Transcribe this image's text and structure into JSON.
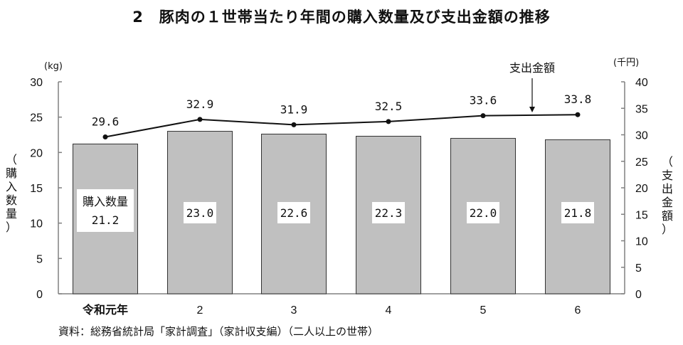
{
  "title": "2　豚肉の１世帯当たり年間の購入数量及び支出金額の推移",
  "left_axis": {
    "unit": "(kg)",
    "label": "（購入数量）",
    "ticks": [
      "0",
      "5",
      "10",
      "15",
      "20",
      "25",
      "30"
    ]
  },
  "right_axis": {
    "unit": "(千円)",
    "label": "（支出金額）",
    "ticks": [
      "0",
      "5",
      "10",
      "15",
      "20",
      "25",
      "30",
      "35",
      "40"
    ]
  },
  "bar_series_label": "購入数量",
  "line_series_label": "支出金額",
  "categories": [
    "令和元年",
    "2",
    "3",
    "4",
    "5",
    "6"
  ],
  "bar_values_text": [
    "21.2",
    "23.0",
    "22.6",
    "22.3",
    "22.0",
    "21.8"
  ],
  "line_values_text": [
    "29.6",
    "32.9",
    "31.9",
    "32.5",
    "33.6",
    "33.8"
  ],
  "source": "資料：総務省統計局「家計調査」（家計収支編）（二人以上の世帯）",
  "colors": {
    "bar_fill": "#c0c0c0",
    "bar_stroke": "#333333",
    "line": "#111111",
    "axis": "#808080"
  },
  "chart_data": {
    "type": "bar",
    "title": "2　豚肉の１世帯当たり年間の購入数量及び支出金額の推移",
    "categories": [
      "令和元年",
      "2",
      "3",
      "4",
      "5",
      "6"
    ],
    "series": [
      {
        "name": "購入数量",
        "type": "bar",
        "axis": "left",
        "unit": "kg",
        "values": [
          21.2,
          23.0,
          22.6,
          22.3,
          22.0,
          21.8
        ]
      },
      {
        "name": "支出金額",
        "type": "line",
        "axis": "right",
        "unit": "千円",
        "values": [
          29.6,
          32.9,
          31.9,
          32.5,
          33.6,
          33.8
        ]
      }
    ],
    "xlabel": "",
    "ylabel": "購入数量 (kg)",
    "ylabel_right": "支出金額 (千円)",
    "ylim": [
      0,
      30
    ],
    "ylim_right": [
      0,
      40
    ],
    "yticks": [
      0,
      5,
      10,
      15,
      20,
      25,
      30
    ],
    "yticks_right": [
      0,
      5,
      10,
      15,
      20,
      25,
      30,
      35,
      40
    ],
    "grid": false,
    "legend": "inline annotations (購入数量 inside first bar, 支出金額 with arrow to line)",
    "source": "資料：総務省統計局「家計調査」（家計収支編）（二人以上の世帯）"
  }
}
